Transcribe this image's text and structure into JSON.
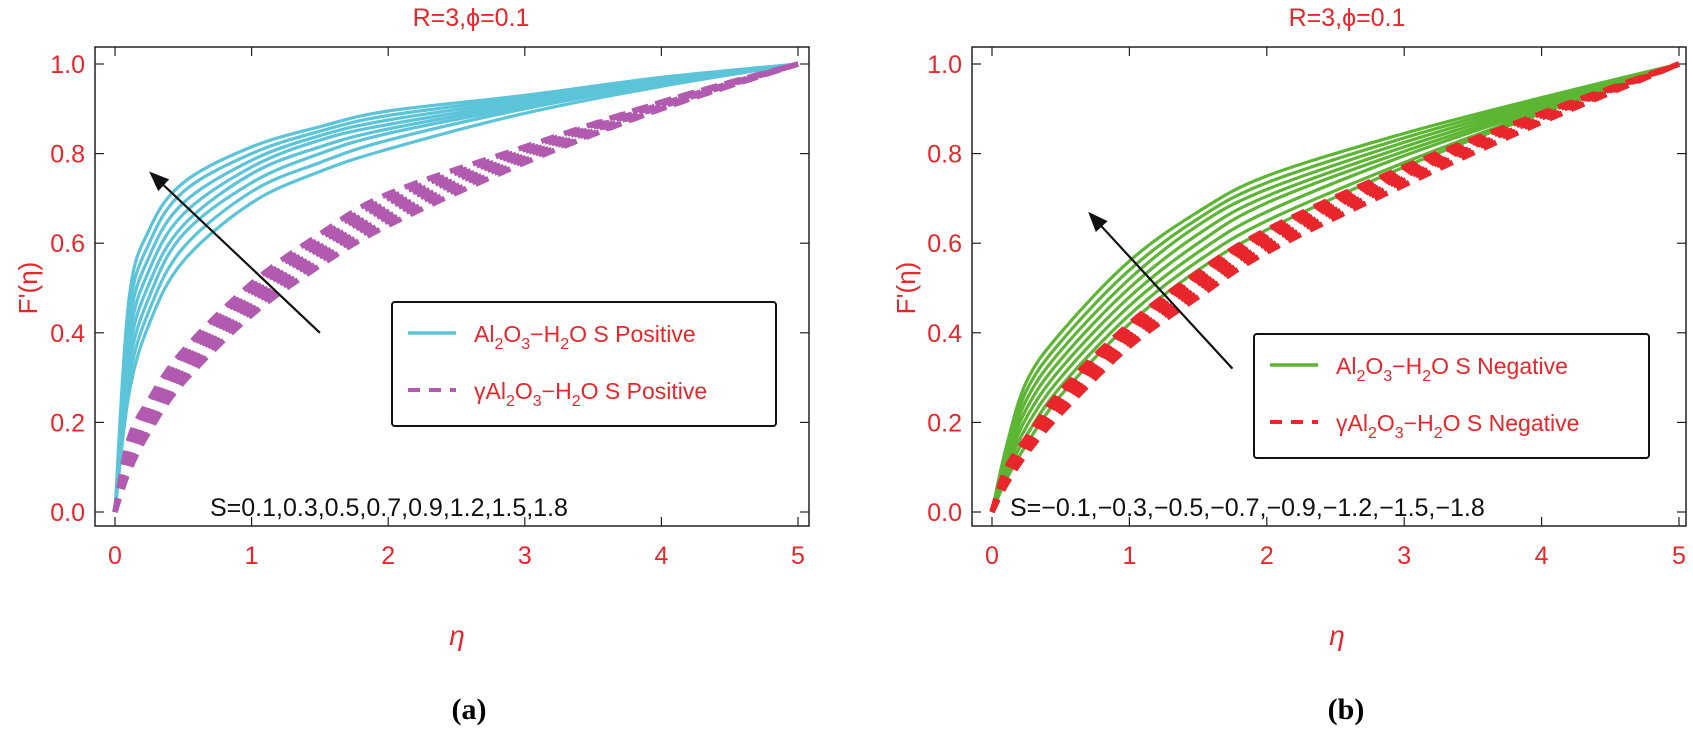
{
  "chart_data": [
    {
      "type": "line",
      "title": "R=3,ϕ=0.1",
      "xlabel": "η",
      "ylabel": "F'(η)",
      "caption": "(a)",
      "xlim": [
        0,
        5
      ],
      "ylim": [
        0,
        1
      ],
      "xticks": [
        "0",
        "1",
        "2",
        "3",
        "4",
        "5"
      ],
      "yticks": [
        "0.0",
        "0.2",
        "0.4",
        "0.6",
        "0.8",
        "1.0"
      ],
      "S_label": "S=0.1,0.3,0.5,0.7,0.9,1.2,1.5,1.8",
      "S_values": [
        0.1,
        0.3,
        0.5,
        0.7,
        0.9,
        1.2,
        1.5,
        1.8
      ],
      "legend_position": "center-right",
      "arrow": {
        "from": [
          1.5,
          0.4
        ],
        "to": [
          0.25,
          0.76
        ]
      },
      "colors": {
        "title": "#e8262b",
        "axis": "#e8262b",
        "series1": "#5bc4d8",
        "series2": "#b15ab0"
      },
      "series": [
        {
          "name_prefix": "Al",
          "name_suffix": " S Positive",
          "style": "solid",
          "color": "#5bc4d8",
          "x": [
            0,
            0.1,
            0.25,
            0.5,
            1,
            1.5,
            2,
            3,
            4,
            5
          ],
          "curves": [
            {
              "S": 0.1,
              "y": [
                0,
                0.26,
                0.42,
                0.56,
                0.69,
                0.76,
                0.81,
                0.89,
                0.95,
                1.0
              ]
            },
            {
              "S": 0.3,
              "y": [
                0,
                0.29,
                0.45,
                0.59,
                0.715,
                0.78,
                0.83,
                0.9,
                0.955,
                1.0
              ]
            },
            {
              "S": 0.5,
              "y": [
                0,
                0.32,
                0.48,
                0.62,
                0.735,
                0.8,
                0.845,
                0.905,
                0.957,
                1.0
              ]
            },
            {
              "S": 0.7,
              "y": [
                0,
                0.35,
                0.51,
                0.64,
                0.755,
                0.815,
                0.855,
                0.91,
                0.96,
                1.0
              ]
            },
            {
              "S": 0.9,
              "y": [
                0,
                0.38,
                0.54,
                0.665,
                0.77,
                0.83,
                0.865,
                0.915,
                0.962,
                1.0
              ]
            },
            {
              "S": 1.2,
              "y": [
                0,
                0.41,
                0.57,
                0.69,
                0.785,
                0.84,
                0.875,
                0.92,
                0.965,
                1.0
              ]
            },
            {
              "S": 1.5,
              "y": [
                0,
                0.44,
                0.6,
                0.715,
                0.8,
                0.85,
                0.885,
                0.925,
                0.967,
                1.0
              ]
            },
            {
              "S": 1.8,
              "y": [
                0,
                0.47,
                0.63,
                0.735,
                0.815,
                0.86,
                0.895,
                0.93,
                0.97,
                1.0
              ]
            }
          ]
        },
        {
          "name_prefix": "γAl",
          "name_suffix": " S Positive",
          "style": "dashed",
          "color": "#b15ab0",
          "x": [
            0,
            0.1,
            0.25,
            0.5,
            1,
            1.5,
            2,
            3,
            4,
            5
          ],
          "curves": [
            {
              "S": 0.1,
              "y": [
                0,
                0.09,
                0.18,
                0.29,
                0.44,
                0.55,
                0.64,
                0.78,
                0.9,
                1.0
              ]
            },
            {
              "S": 0.3,
              "y": [
                0,
                0.1,
                0.19,
                0.3,
                0.45,
                0.56,
                0.65,
                0.785,
                0.9,
                1.0
              ]
            },
            {
              "S": 0.5,
              "y": [
                0,
                0.11,
                0.2,
                0.31,
                0.46,
                0.57,
                0.66,
                0.79,
                0.905,
                1.0
              ]
            },
            {
              "S": 0.7,
              "y": [
                0,
                0.12,
                0.21,
                0.32,
                0.47,
                0.58,
                0.67,
                0.795,
                0.905,
                1.0
              ]
            },
            {
              "S": 0.9,
              "y": [
                0,
                0.13,
                0.22,
                0.33,
                0.48,
                0.59,
                0.68,
                0.8,
                0.91,
                1.0
              ]
            },
            {
              "S": 1.2,
              "y": [
                0,
                0.14,
                0.23,
                0.34,
                0.49,
                0.6,
                0.69,
                0.805,
                0.91,
                1.0
              ]
            },
            {
              "S": 1.5,
              "y": [
                0,
                0.15,
                0.24,
                0.35,
                0.5,
                0.61,
                0.7,
                0.81,
                0.915,
                1.0
              ]
            },
            {
              "S": 1.8,
              "y": [
                0,
                0.16,
                0.25,
                0.36,
                0.51,
                0.62,
                0.71,
                0.815,
                0.915,
                1.0
              ]
            }
          ]
        }
      ]
    },
    {
      "type": "line",
      "title": "R=3,ϕ=0.1",
      "xlabel": "η",
      "ylabel": "F'(η)",
      "caption": "(b)",
      "xlim": [
        0,
        5
      ],
      "ylim": [
        0,
        1
      ],
      "xticks": [
        "0",
        "1",
        "2",
        "3",
        "4",
        "5"
      ],
      "yticks": [
        "0.0",
        "0.2",
        "0.4",
        "0.6",
        "0.8",
        "1.0"
      ],
      "S_label": "S=−0.1,−0.3,−0.5,−0.7,−0.9,−1.2,−1.5,−1.8",
      "S_values": [
        -0.1,
        -0.3,
        -0.5,
        -0.7,
        -0.9,
        -1.2,
        -1.5,
        -1.8
      ],
      "legend_position": "center-right",
      "arrow": {
        "from": [
          1.75,
          0.32
        ],
        "to": [
          0.7,
          0.67
        ]
      },
      "colors": {
        "title": "#e8262b",
        "axis": "#e8262b",
        "series1": "#5db534",
        "series2": "#e8262b"
      },
      "series": [
        {
          "name_prefix": "Al",
          "name_suffix": " S Negative",
          "style": "solid",
          "color": "#5db534",
          "x": [
            0,
            0.1,
            0.25,
            0.5,
            1,
            1.5,
            2,
            3,
            4,
            5
          ],
          "curves": [
            {
              "S": -0.1,
              "y": [
                0,
                0.07,
                0.15,
                0.26,
                0.42,
                0.54,
                0.63,
                0.77,
                0.89,
                1.0
              ]
            },
            {
              "S": -0.3,
              "y": [
                0,
                0.08,
                0.17,
                0.28,
                0.44,
                0.56,
                0.65,
                0.78,
                0.895,
                1.0
              ]
            },
            {
              "S": -0.5,
              "y": [
                0,
                0.09,
                0.19,
                0.3,
                0.46,
                0.58,
                0.67,
                0.795,
                0.9,
                1.0
              ]
            },
            {
              "S": -0.7,
              "y": [
                0,
                0.1,
                0.21,
                0.32,
                0.48,
                0.6,
                0.69,
                0.805,
                0.905,
                1.0
              ]
            },
            {
              "S": -0.9,
              "y": [
                0,
                0.11,
                0.23,
                0.34,
                0.5,
                0.62,
                0.705,
                0.815,
                0.91,
                1.0
              ]
            },
            {
              "S": -1.2,
              "y": [
                0,
                0.12,
                0.25,
                0.36,
                0.52,
                0.64,
                0.72,
                0.825,
                0.915,
                1.0
              ]
            },
            {
              "S": -1.5,
              "y": [
                0,
                0.13,
                0.27,
                0.38,
                0.54,
                0.655,
                0.735,
                0.835,
                0.92,
                1.0
              ]
            },
            {
              "S": -1.8,
              "y": [
                0,
                0.14,
                0.29,
                0.4,
                0.56,
                0.67,
                0.75,
                0.845,
                0.925,
                1.0
              ]
            }
          ]
        },
        {
          "name_prefix": "γAl",
          "name_suffix": " S Negative",
          "style": "dashed",
          "color": "#e8262b",
          "x": [
            0,
            0.1,
            0.25,
            0.5,
            1,
            1.5,
            2,
            3,
            4,
            5
          ],
          "curves": [
            {
              "S": -0.1,
              "y": [
                0,
                0.06,
                0.13,
                0.22,
                0.37,
                0.48,
                0.58,
                0.73,
                0.87,
                1.0
              ]
            },
            {
              "S": -0.3,
              "y": [
                0,
                0.065,
                0.135,
                0.23,
                0.38,
                0.49,
                0.59,
                0.74,
                0.875,
                1.0
              ]
            },
            {
              "S": -0.5,
              "y": [
                0,
                0.07,
                0.14,
                0.24,
                0.39,
                0.5,
                0.6,
                0.745,
                0.88,
                1.0
              ]
            },
            {
              "S": -0.7,
              "y": [
                0,
                0.075,
                0.145,
                0.25,
                0.4,
                0.51,
                0.61,
                0.75,
                0.88,
                1.0
              ]
            },
            {
              "S": -0.9,
              "y": [
                0,
                0.08,
                0.15,
                0.255,
                0.405,
                0.52,
                0.615,
                0.755,
                0.885,
                1.0
              ]
            },
            {
              "S": -1.2,
              "y": [
                0,
                0.085,
                0.155,
                0.26,
                0.41,
                0.525,
                0.62,
                0.76,
                0.885,
                1.0
              ]
            },
            {
              "S": -1.5,
              "y": [
                0,
                0.09,
                0.16,
                0.265,
                0.415,
                0.53,
                0.625,
                0.765,
                0.89,
                1.0
              ]
            },
            {
              "S": -1.8,
              "y": [
                0,
                0.095,
                0.165,
                0.27,
                0.42,
                0.535,
                0.63,
                0.77,
                0.89,
                1.0
              ]
            }
          ]
        }
      ]
    }
  ]
}
